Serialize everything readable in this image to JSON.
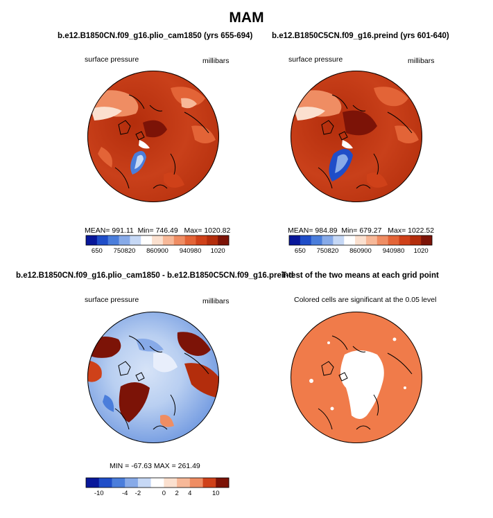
{
  "title": "MAM",
  "chart_data": [
    {
      "type": "heatmap",
      "projection": "north polar stereographic",
      "title": "b.e12.B1850CN.f09_g16.plio_cam1850 (yrs 655-694)",
      "variable": "surface pressure",
      "units": "millibars",
      "stats": {
        "mean_label": "MEAN=",
        "mean": "991.11",
        "min_label": "Min=",
        "min": "746.49",
        "max_label": "Max=",
        "max": "1020.82"
      },
      "colorbar": {
        "labels": [
          "650",
          "750",
          "820",
          "860",
          "900",
          "940",
          "980",
          "1020"
        ],
        "colors": [
          "#08179a",
          "#1f4dc8",
          "#4a7ddb",
          "#87aae8",
          "#c6d8f5",
          "#ffffff",
          "#fbe0cf",
          "#f7b898",
          "#ef8d63",
          "#e36437",
          "#cf4119",
          "#b32d0c",
          "#7c1307"
        ]
      }
    },
    {
      "type": "heatmap",
      "projection": "north polar stereographic",
      "title": "b.e12.B1850C5CN.f09_g16.preind (yrs 601-640)",
      "variable": "surface pressure",
      "units": "millibars",
      "stats": {
        "mean_label": "MEAN=",
        "mean": "984.89",
        "min_label": "Min=",
        "min": "679.27",
        "max_label": "Max=",
        "max": "1022.52"
      },
      "colorbar": {
        "labels": [
          "650",
          "750",
          "820",
          "860",
          "900",
          "940",
          "980",
          "1020"
        ],
        "colors": [
          "#08179a",
          "#1f4dc8",
          "#4a7ddb",
          "#87aae8",
          "#c6d8f5",
          "#ffffff",
          "#fbe0cf",
          "#f7b898",
          "#ef8d63",
          "#e36437",
          "#cf4119",
          "#b32d0c",
          "#7c1307"
        ]
      }
    },
    {
      "type": "heatmap",
      "projection": "north polar stereographic",
      "title": "b.e12.B1850CN.f09_g16.plio_cam1850 - b.e12.B1850C5CN.f09_g16.preind",
      "variable": "surface pressure",
      "units": "millibars",
      "stats": {
        "min_label": "MIN =",
        "min": "-67.63",
        "max_label": "MAX =",
        "max": "261.49"
      },
      "colorbar": {
        "labels": [
          "-10",
          "-4",
          "-2",
          "0",
          "2",
          "4",
          "10"
        ],
        "colors": [
          "#08179a",
          "#1f4dc8",
          "#4a7ddb",
          "#87aae8",
          "#c6d8f5",
          "#ffffff",
          "#fbe0cf",
          "#f7b898",
          "#ef8d63",
          "#cf4119",
          "#7c1307"
        ]
      }
    },
    {
      "type": "heatmap",
      "projection": "north polar stereographic",
      "title": "T-test of the two means at each grid point",
      "subtitle": "Colored cells are significant at the 0.05 level",
      "significant_color": "#f07b4a",
      "not_significant_color": "#ffffff"
    }
  ]
}
